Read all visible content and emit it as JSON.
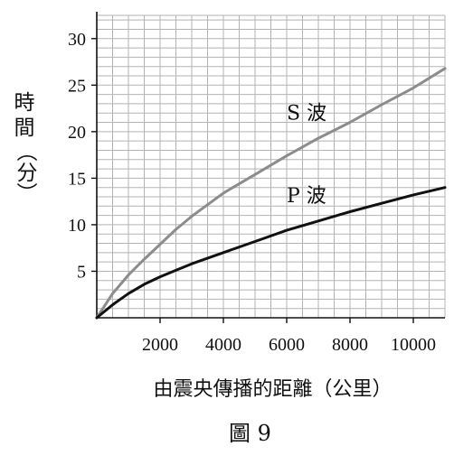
{
  "chart_data": {
    "type": "line",
    "title": "",
    "xlabel": "由震央傳播的距離（公里）",
    "ylabel": [
      "時",
      "間",
      "（分）"
    ],
    "caption": "圖 9",
    "xlim": [
      0,
      11000
    ],
    "ylim": [
      0,
      32.5
    ],
    "xticks": [
      2000,
      4000,
      6000,
      8000,
      10000
    ],
    "yticks": [
      5,
      10,
      15,
      20,
      25,
      30
    ],
    "grid": true,
    "series": [
      {
        "name": "S 波",
        "color": "#8c8c8c",
        "x": [
          0,
          500,
          1000,
          1500,
          2000,
          2500,
          3000,
          4000,
          5000,
          6000,
          7000,
          8000,
          9000,
          10000,
          11000
        ],
        "y": [
          0,
          2.6,
          4.6,
          6.3,
          7.9,
          9.5,
          10.9,
          13.4,
          15.4,
          17.4,
          19.3,
          21.0,
          22.9,
          24.7,
          26.8
        ]
      },
      {
        "name": "P 波",
        "color": "#111111",
        "x": [
          0,
          500,
          1000,
          1500,
          2000,
          2500,
          3000,
          4000,
          5000,
          6000,
          7000,
          8000,
          9000,
          10000,
          11000
        ],
        "y": [
          0,
          1.4,
          2.6,
          3.6,
          4.4,
          5.1,
          5.8,
          7.0,
          8.2,
          9.4,
          10.4,
          11.4,
          12.3,
          13.2,
          14.0
        ]
      }
    ]
  }
}
